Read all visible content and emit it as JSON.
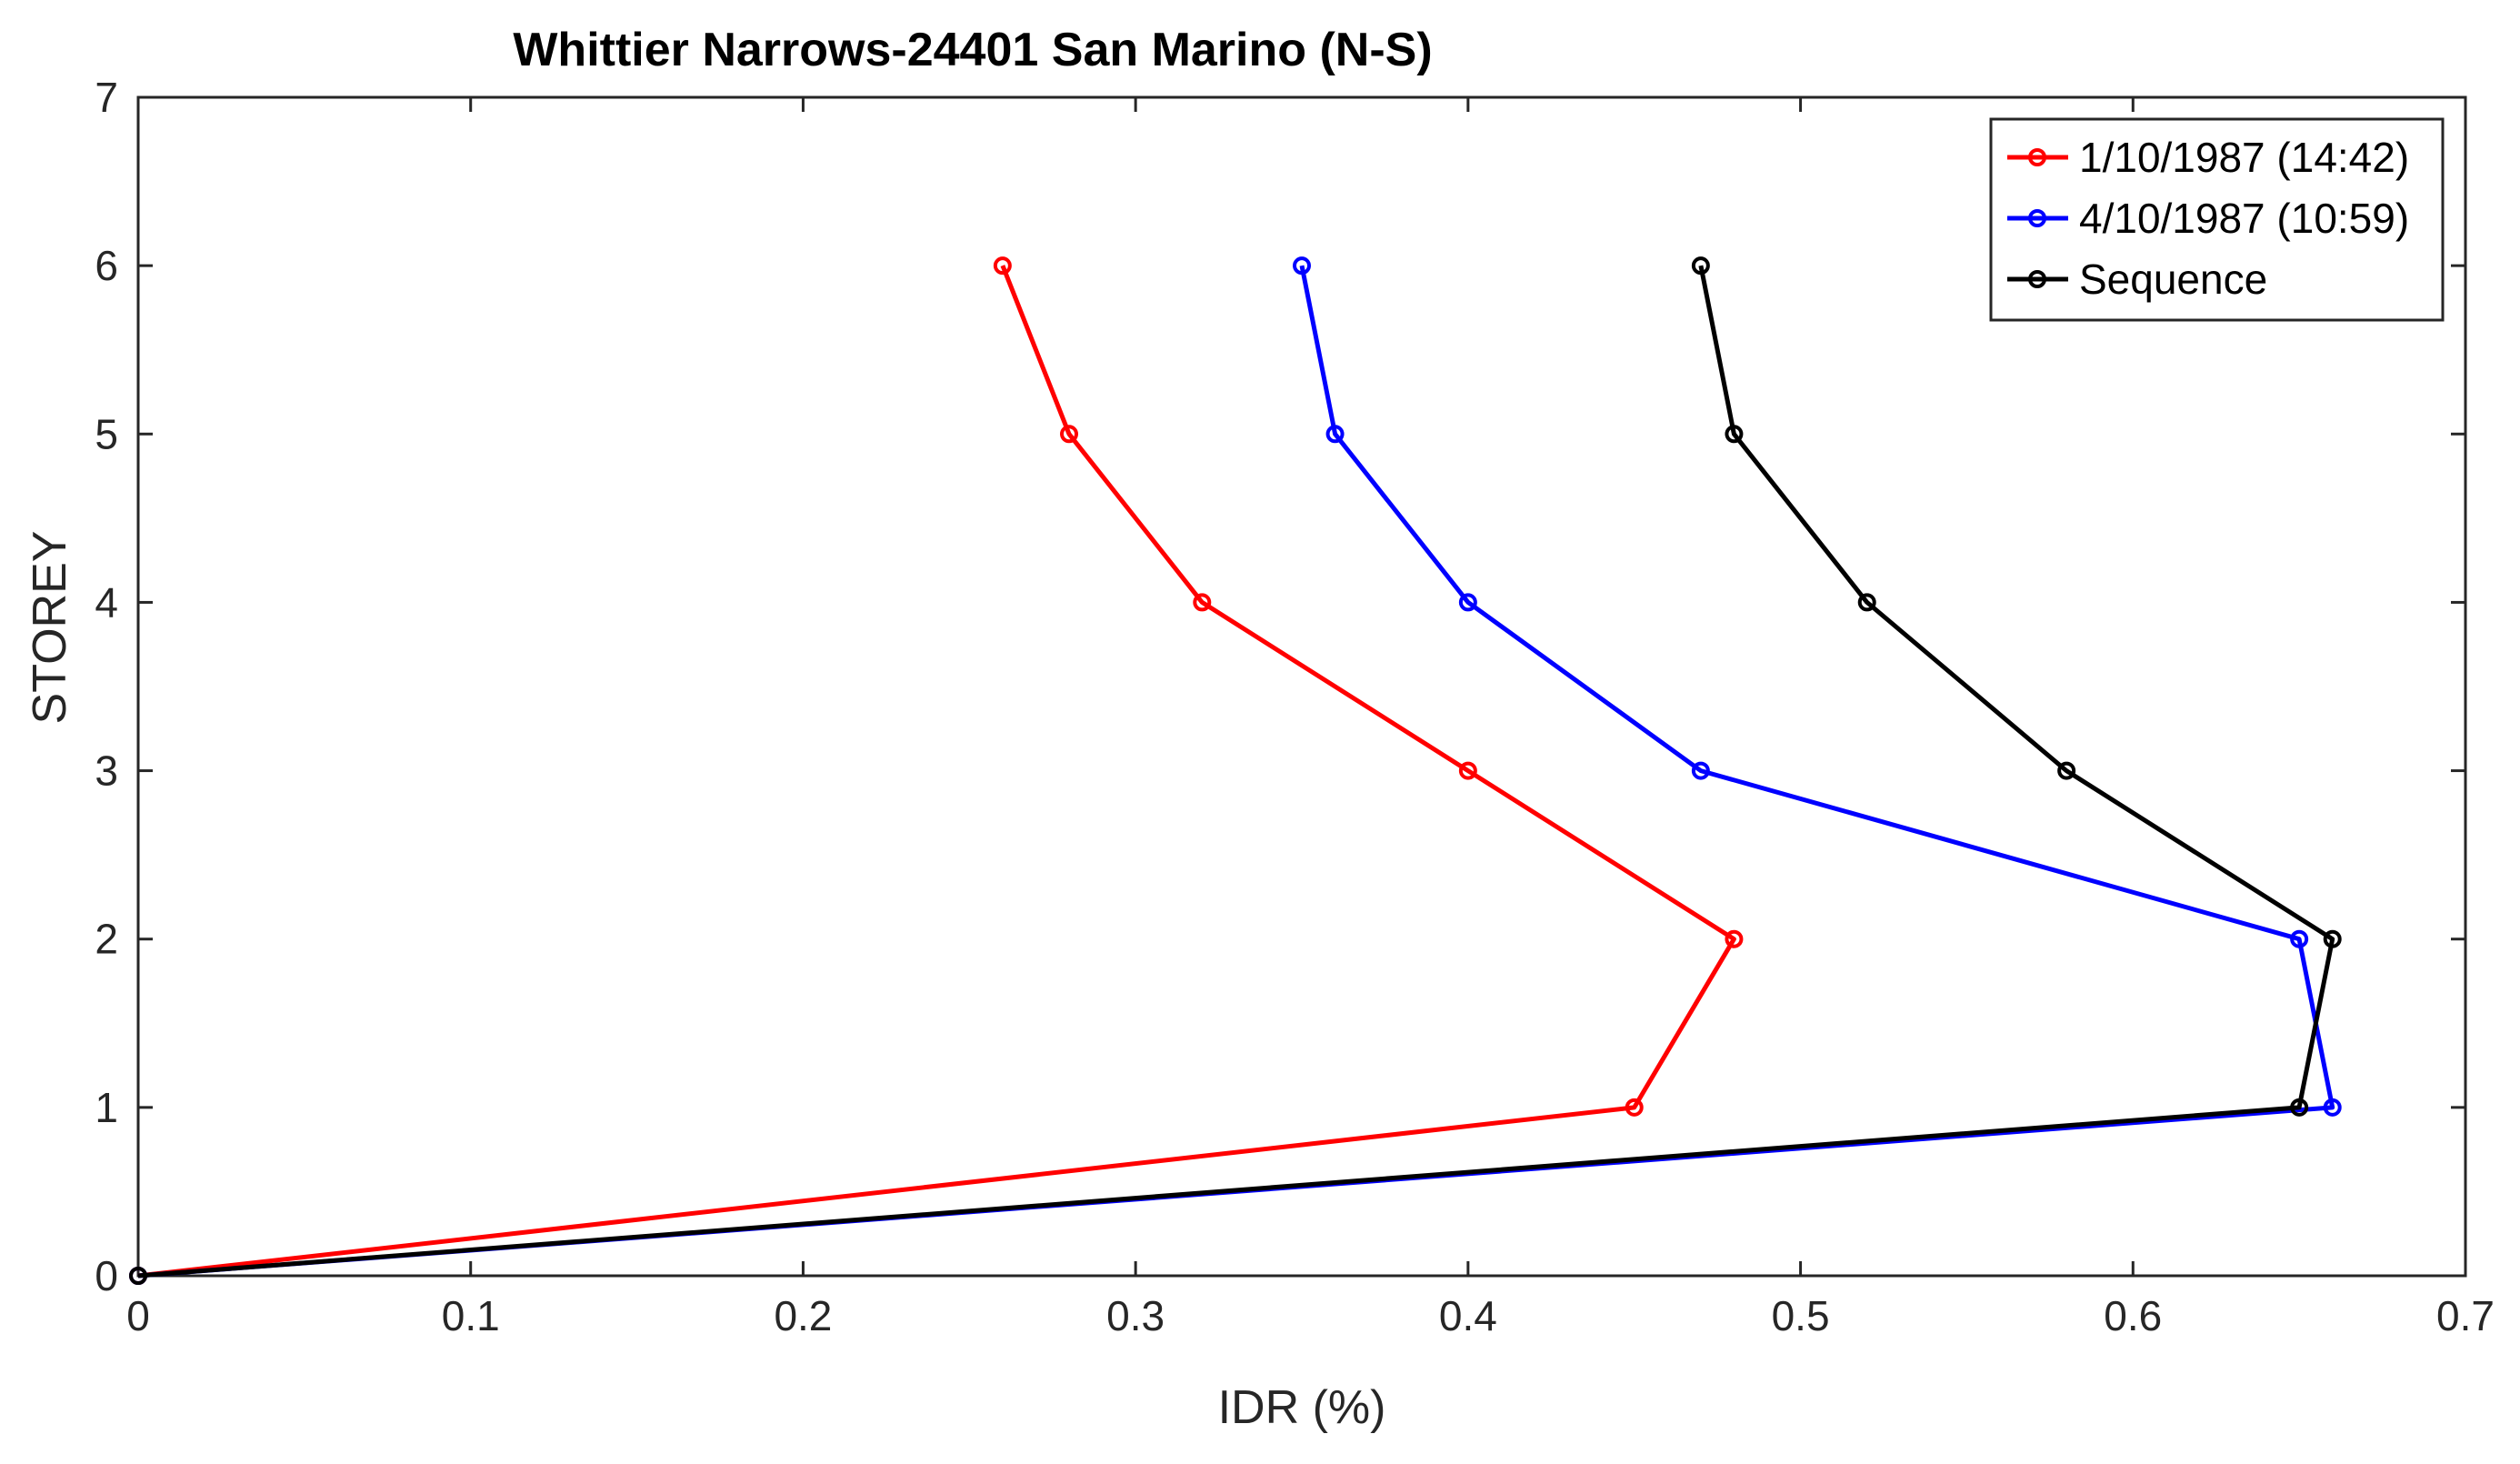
{
  "chart_data": {
    "type": "line",
    "title": "Whittier Narrows-24401 San Marino (N-S)",
    "xlabel": "IDR (%)",
    "ylabel": "STOREY",
    "xlim": [
      0,
      0.7
    ],
    "ylim": [
      0,
      7
    ],
    "xticks": [
      0,
      0.1,
      0.2,
      0.3,
      0.4,
      0.5,
      0.6,
      0.7
    ],
    "xtick_labels": [
      "0",
      "0.1",
      "0.2",
      "0.3",
      "0.4",
      "0.5",
      "0.6",
      "0.7"
    ],
    "yticks": [
      0,
      1,
      2,
      3,
      4,
      5,
      6,
      7
    ],
    "ytick_labels": [
      "0",
      "1",
      "2",
      "3",
      "4",
      "5",
      "6",
      "7"
    ],
    "grid": false,
    "legend_position": "top-right",
    "marker": "circle",
    "series": [
      {
        "name": "1/10/1987 (14:42)",
        "color": "#ff0000",
        "points": [
          {
            "x": 0,
            "y": 0
          },
          {
            "x": 0.45,
            "y": 1
          },
          {
            "x": 0.48,
            "y": 2
          },
          {
            "x": 0.4,
            "y": 3
          },
          {
            "x": 0.32,
            "y": 4
          },
          {
            "x": 0.28,
            "y": 5
          },
          {
            "x": 0.26,
            "y": 6
          }
        ]
      },
      {
        "name": "4/10/1987 (10:59)",
        "color": "#0000ff",
        "points": [
          {
            "x": 0,
            "y": 0
          },
          {
            "x": 0.66,
            "y": 1
          },
          {
            "x": 0.65,
            "y": 2
          },
          {
            "x": 0.47,
            "y": 3
          },
          {
            "x": 0.4,
            "y": 4
          },
          {
            "x": 0.36,
            "y": 5
          },
          {
            "x": 0.35,
            "y": 6
          }
        ]
      },
      {
        "name": "Sequence",
        "color": "#000000",
        "points": [
          {
            "x": 0,
            "y": 0
          },
          {
            "x": 0.65,
            "y": 1
          },
          {
            "x": 0.66,
            "y": 2
          },
          {
            "x": 0.58,
            "y": 3
          },
          {
            "x": 0.52,
            "y": 4
          },
          {
            "x": 0.48,
            "y": 5
          },
          {
            "x": 0.47,
            "y": 6
          }
        ]
      }
    ]
  }
}
